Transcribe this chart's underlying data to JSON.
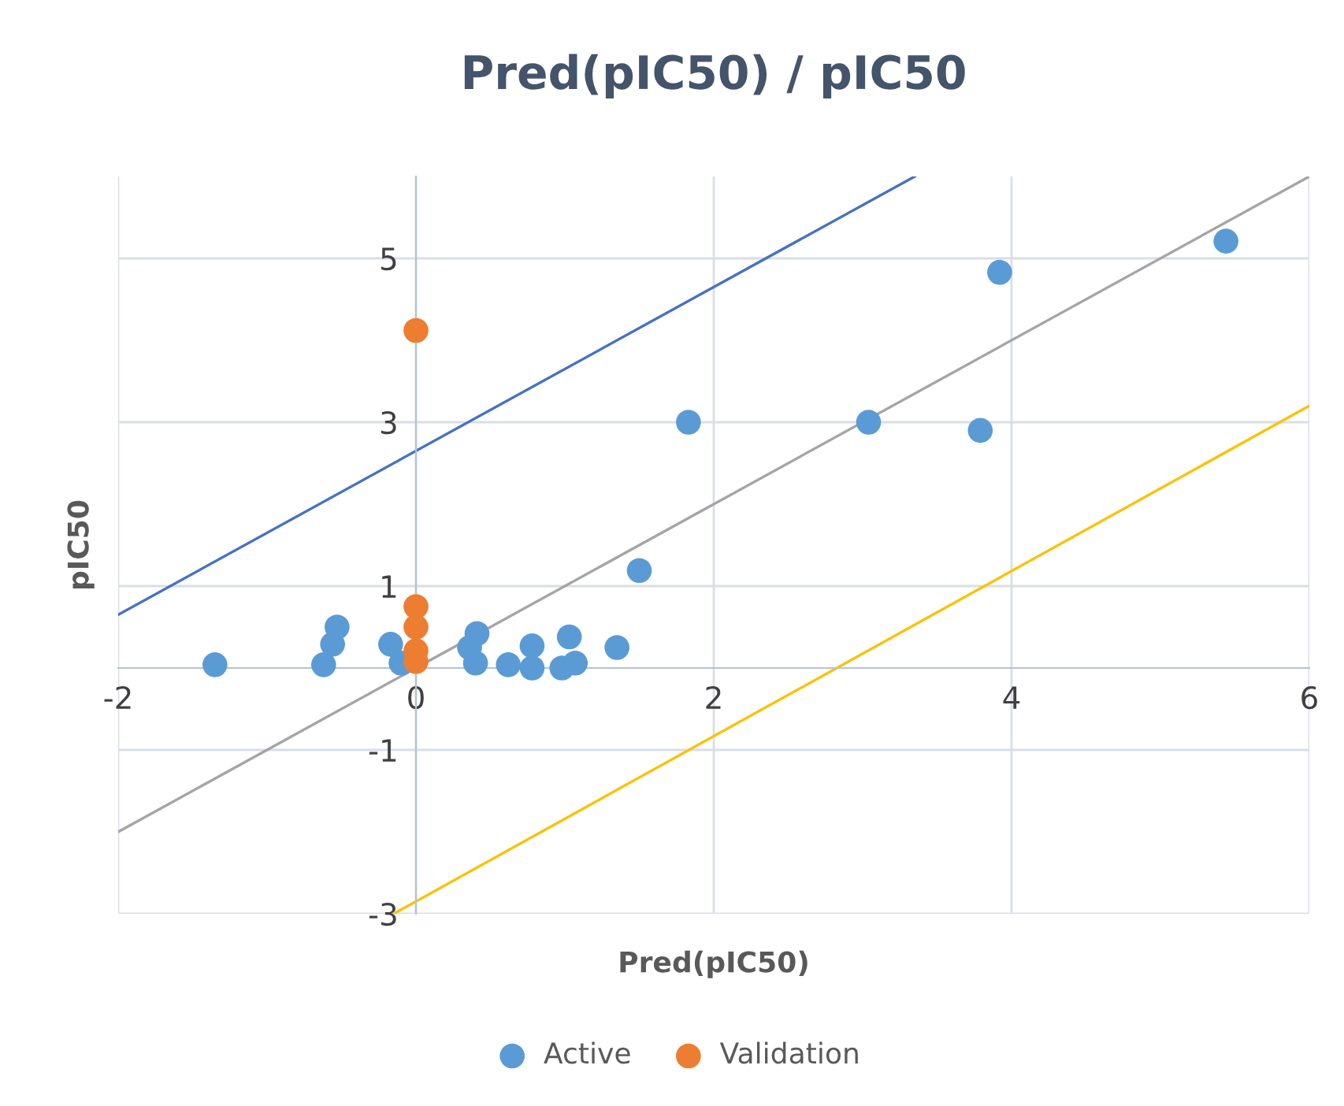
{
  "chart_data": {
    "type": "scatter",
    "title": "Pred(pIC50) / pIC50",
    "xlabel": "Pred(pIC50)",
    "ylabel": "pIC50",
    "xlim": [
      -2,
      6
    ],
    "ylim": [
      -3,
      6
    ],
    "xticks": [
      -2,
      0,
      2,
      4,
      6
    ],
    "yticks": [
      -3,
      -1,
      1,
      3,
      5
    ],
    "grid": true,
    "legend": "bottom",
    "marker": "circle",
    "series": [
      {
        "name": "Active",
        "color": "#5b9bd5",
        "x": [
          -1.35,
          -0.62,
          -0.56,
          -0.53,
          -0.17,
          -0.1,
          0.36,
          0.41,
          0.4,
          0.62,
          0.78,
          0.78,
          1.03,
          0.98,
          1.07,
          1.35,
          1.5,
          1.83,
          3.04,
          3.79,
          3.92,
          5.44
        ],
        "values": [
          0.04,
          0.04,
          0.29,
          0.5,
          0.29,
          0.06,
          0.25,
          0.42,
          0.06,
          0.04,
          0.27,
          0.0,
          0.38,
          0.0,
          0.06,
          0.25,
          1.19,
          3.0,
          3.0,
          2.9,
          4.83,
          5.21
        ]
      },
      {
        "name": "Validation",
        "color": "#ed7d31",
        "x": [
          0,
          0,
          0,
          0,
          0
        ],
        "values": [
          4.12,
          0.75,
          0.5,
          0.21,
          0.08
        ]
      },
      {
        "type": "line",
        "color": "#a5a5a5",
        "x": [
          -2,
          6
        ],
        "values": [
          -2,
          6
        ],
        "marker": "none"
      },
      {
        "type": "line",
        "color": "#4472c4",
        "x": [
          -2,
          3.35
        ],
        "values": [
          0.65,
          6
        ],
        "marker": "none"
      },
      {
        "type": "line",
        "color": "#ffc000",
        "x": [
          -0.15,
          6
        ],
        "values": [
          -3,
          3.2
        ],
        "marker": "none"
      }
    ]
  }
}
